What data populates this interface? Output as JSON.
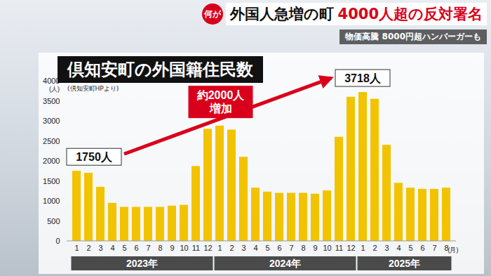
{
  "header": {
    "tag": "何が",
    "headline": "外国人急増の町",
    "headline_emphasis": "4000人超の反対署名",
    "subheadline": "物価高騰 8000円超ハンバーガーも"
  },
  "chart_data": {
    "type": "bar",
    "title": "倶知安町の外国籍住民数",
    "source": "(倶知安町HPより)",
    "ylabel": "(人)",
    "xlabel": "(月)",
    "categories": [
      "1",
      "2",
      "3",
      "4",
      "5",
      "6",
      "7",
      "8",
      "9",
      "10",
      "11",
      "12",
      "1",
      "2",
      "3",
      "4",
      "5",
      "6",
      "7",
      "8",
      "9",
      "10",
      "11",
      "12",
      "1",
      "2",
      "3",
      "4",
      "5",
      "6",
      "7",
      "8"
    ],
    "year_groups": [
      {
        "label": "2023年",
        "count": 12
      },
      {
        "label": "2024年",
        "count": 12
      },
      {
        "label": "2025年",
        "count": 8
      }
    ],
    "values": [
      1750,
      1700,
      1350,
      950,
      850,
      850,
      850,
      850,
      880,
      900,
      1870,
      2800,
      2880,
      2780,
      2100,
      1330,
      1230,
      1200,
      1200,
      1200,
      1180,
      1260,
      2600,
      3600,
      3718,
      3550,
      2400,
      1450,
      1330,
      1300,
      1300,
      1330
    ],
    "value_labels": [
      "1750人",
      null,
      null,
      null,
      null,
      null,
      null,
      null,
      null,
      null,
      null,
      null,
      null,
      null,
      null,
      null,
      null,
      null,
      null,
      null,
      null,
      null,
      null,
      null,
      "3718人",
      null,
      null,
      null,
      null,
      null,
      null,
      null
    ],
    "annotations": [
      {
        "text": [
          "約2000人",
          "増加"
        ]
      }
    ],
    "color": "#f2c300",
    "ylim": [
      0,
      4000
    ],
    "yticks": [
      0,
      500,
      1000,
      1500,
      2000,
      2500,
      3000,
      3500,
      4000
    ],
    "grid": false
  }
}
